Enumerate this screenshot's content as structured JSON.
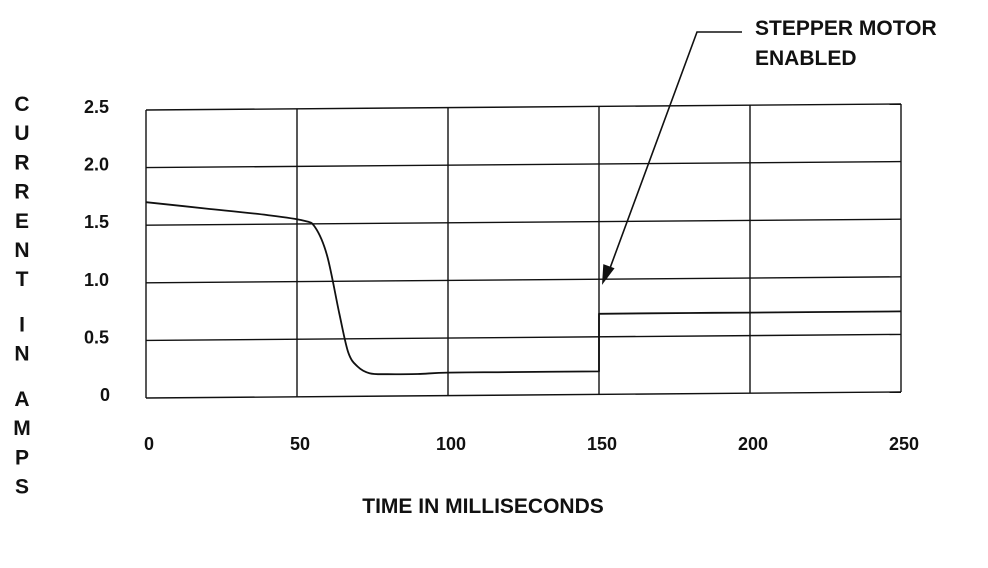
{
  "chart_data": {
    "type": "line",
    "xlabel": "TIME IN MILLISECONDS",
    "ylabel": "CURRENT IN AMPS",
    "xlim": [
      0,
      250
    ],
    "ylim": [
      0,
      2.5
    ],
    "x_ticks": [
      0,
      50,
      100,
      150,
      200,
      250
    ],
    "y_ticks": [
      0,
      0.5,
      1.0,
      1.5,
      2.0,
      2.5
    ],
    "x_tick_labels": [
      "0",
      "50",
      "100",
      "150",
      "200",
      "250"
    ],
    "y_tick_labels": [
      "0",
      "0.5",
      "1.0",
      "1.5",
      "2.0",
      "2.5"
    ],
    "grid": true,
    "series": [
      {
        "x": [
          0,
          20,
          40,
          52,
          56,
          60,
          64,
          67,
          70,
          74,
          80,
          90,
          100,
          120,
          150,
          150,
          180,
          200,
          250
        ],
        "y": [
          1.7,
          1.64,
          1.58,
          1.53,
          1.47,
          1.22,
          0.72,
          0.38,
          0.26,
          0.2,
          0.19,
          0.19,
          0.2,
          0.2,
          0.2,
          0.7,
          0.7,
          0.7,
          0.7
        ]
      }
    ],
    "annotations": [
      {
        "lines": [
          "STEPPER MOTOR",
          "ENABLED"
        ],
        "points_to": {
          "x": 151,
          "y": 0.95
        }
      }
    ]
  }
}
